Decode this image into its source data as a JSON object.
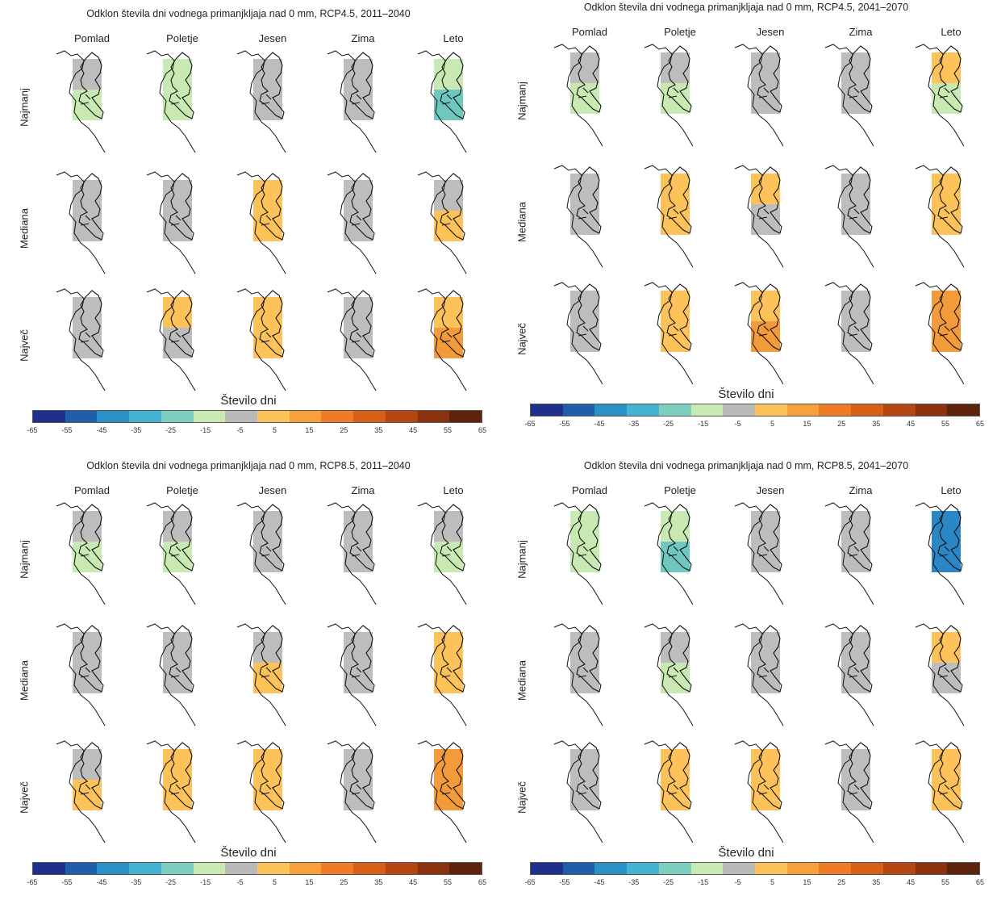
{
  "colorbar": {
    "title": "Število dni",
    "ticks": [
      "-65",
      "-55",
      "-45",
      "-35",
      "-25",
      "-15",
      "-5",
      "5",
      "15",
      "25",
      "35",
      "45",
      "55",
      "65"
    ],
    "colors": [
      "#1e2f8c",
      "#1f5ea8",
      "#2b8fc8",
      "#43b5d2",
      "#7fcfc0",
      "#c8e9b2",
      "#b9b9b9",
      "#fdc35a",
      "#f7a03c",
      "#ef7c24",
      "#d95e16",
      "#b5460f",
      "#8b3310",
      "#5e230c"
    ]
  },
  "seasons": [
    "Pomlad",
    "Poletje",
    "Jesen",
    "Zima",
    "Leto"
  ],
  "rows": [
    "Najmanj",
    "Mediana",
    "Največ"
  ],
  "panels": [
    {
      "title": "Odklon števila dni vodnega primanjkljaja nad 0 mm, RCP4.5, 2011–2040",
      "maps": [
        [
          [
            "gray",
            "green"
          ],
          [
            "green",
            "green"
          ],
          [
            "gray",
            "gray"
          ],
          [
            "gray",
            "gray"
          ],
          [
            "green",
            "teal"
          ]
        ],
        [
          [
            "gray",
            "gray"
          ],
          [
            "gray",
            "gray"
          ],
          [
            "orange",
            "orange"
          ],
          [
            "gray",
            "gray"
          ],
          [
            "gray",
            "orange"
          ]
        ],
        [
          [
            "gray",
            "gray"
          ],
          [
            "orange",
            "gray"
          ],
          [
            "orange",
            "orange"
          ],
          [
            "gray",
            "gray"
          ],
          [
            "orange",
            "dorange"
          ]
        ]
      ]
    },
    {
      "title": "Odklon števila dni vodnega primanjkljaja nad 0 mm, RCP4.5, 2041–2070",
      "maps": [
        [
          [
            "gray",
            "green"
          ],
          [
            "gray",
            "green"
          ],
          [
            "gray",
            "gray"
          ],
          [
            "gray",
            "gray"
          ],
          [
            "orange",
            "green"
          ]
        ],
        [
          [
            "gray",
            "gray"
          ],
          [
            "orange",
            "orange"
          ],
          [
            "orange",
            "gray"
          ],
          [
            "gray",
            "gray"
          ],
          [
            "orange",
            "orange"
          ]
        ],
        [
          [
            "gray",
            "gray"
          ],
          [
            "orange",
            "orange"
          ],
          [
            "orange",
            "dorange"
          ],
          [
            "gray",
            "gray"
          ],
          [
            "dorange",
            "dorange"
          ]
        ]
      ]
    },
    {
      "title": "Odklon števila dni vodnega primanjkljaja nad 0 mm, RCP8.5, 2011–2040",
      "maps": [
        [
          [
            "gray",
            "green"
          ],
          [
            "gray",
            "green"
          ],
          [
            "gray",
            "gray"
          ],
          [
            "gray",
            "gray"
          ],
          [
            "gray",
            "green"
          ]
        ],
        [
          [
            "gray",
            "gray"
          ],
          [
            "gray",
            "gray"
          ],
          [
            "gray",
            "orange"
          ],
          [
            "gray",
            "gray"
          ],
          [
            "orange",
            "orange"
          ]
        ],
        [
          [
            "gray",
            "orange"
          ],
          [
            "orange",
            "orange"
          ],
          [
            "orange",
            "orange"
          ],
          [
            "gray",
            "gray"
          ],
          [
            "dorange",
            "dorange"
          ]
        ]
      ]
    },
    {
      "title": "Odklon števila dni vodnega primanjkljaja nad 0 mm, RCP8.5, 2041–2070",
      "maps": [
        [
          [
            "green",
            "green"
          ],
          [
            "green",
            "teal"
          ],
          [
            "gray",
            "gray"
          ],
          [
            "gray",
            "gray"
          ],
          [
            "blue",
            "blue"
          ]
        ],
        [
          [
            "gray",
            "gray"
          ],
          [
            "gray",
            "green"
          ],
          [
            "gray",
            "gray"
          ],
          [
            "gray",
            "gray"
          ],
          [
            "orange",
            "gray"
          ]
        ],
        [
          [
            "gray",
            "gray"
          ],
          [
            "orange",
            "orange"
          ],
          [
            "orange",
            "orange"
          ],
          [
            "gray",
            "gray"
          ],
          [
            "orange",
            "orange"
          ]
        ]
      ]
    }
  ],
  "palette": {
    "gray": "#bdbdbd",
    "green": "#c8e9b2",
    "teal": "#6fc8bf",
    "blue": "#2a86c4",
    "orange": "#fdc35a",
    "dorange": "#f39a3a"
  }
}
